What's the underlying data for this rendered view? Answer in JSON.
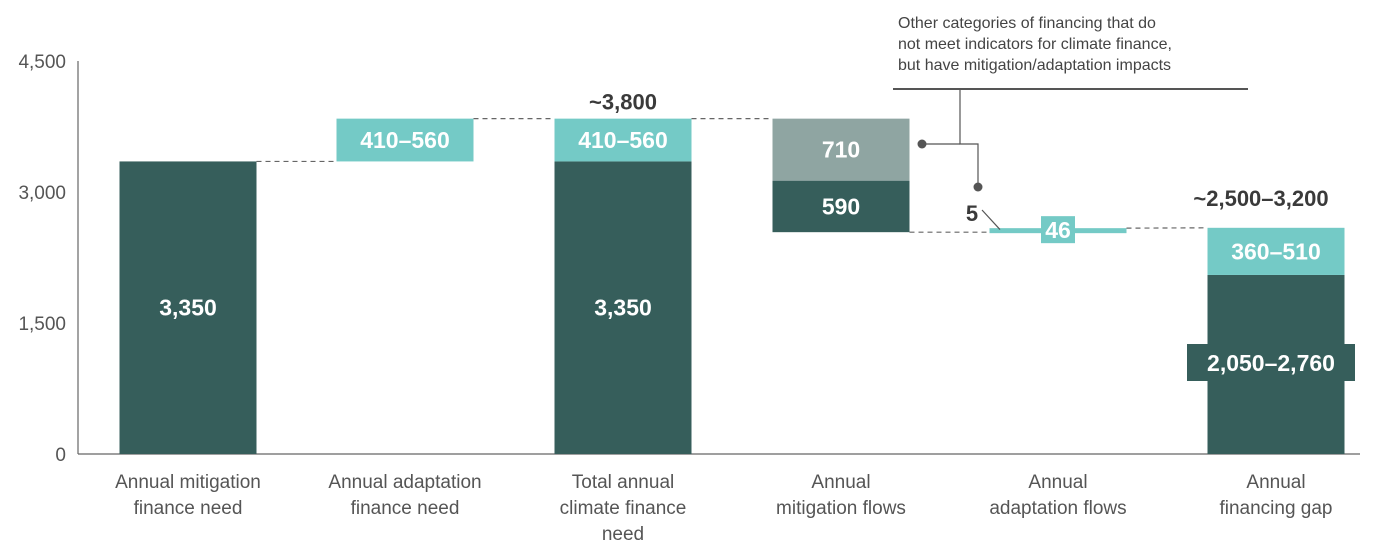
{
  "chart_data": {
    "type": "bar",
    "subtype": "waterfall",
    "ylim": [
      0,
      4500
    ],
    "yticks": [
      {
        "value": 0,
        "label": "0"
      },
      {
        "value": 1500,
        "label": "1,500"
      },
      {
        "value": 3000,
        "label": "3,000"
      },
      {
        "value": 4500,
        "label": "4,500"
      }
    ],
    "categories": [
      [
        "Annual mitigation",
        "finance need"
      ],
      [
        "Annual adaptation",
        "finance need"
      ],
      [
        "Total annual",
        "climate finance",
        "need"
      ],
      [
        "Annual",
        "mitigation flows"
      ],
      [
        "Annual",
        "adaptation flows"
      ],
      [
        "Annual",
        "financing gap"
      ]
    ],
    "segments": [
      {
        "category": 0,
        "start": 0,
        "end": 3350,
        "label": "3,350",
        "color": "dark"
      },
      {
        "category": 1,
        "start": 3350,
        "end": 3840,
        "label": "410–560",
        "color": "teal"
      },
      {
        "category": 2,
        "start": 0,
        "end": 3350,
        "label": "3,350",
        "color": "dark"
      },
      {
        "category": 2,
        "start": 3350,
        "end": 3840,
        "label": "410–560",
        "color": "teal"
      },
      {
        "category": 3,
        "start": 2540,
        "end": 3130,
        "label": "590",
        "color": "dark"
      },
      {
        "category": 3,
        "start": 3130,
        "end": 3840,
        "label": "710",
        "color": "gray"
      },
      {
        "category": 4,
        "start": 2540,
        "end": 2586,
        "label": "46",
        "color": "teal"
      },
      {
        "category": 5,
        "start": 0,
        "end": 2050,
        "label": "2,050–2,760",
        "color": "dark"
      },
      {
        "category": 5,
        "start": 2050,
        "end": 2590,
        "label": "360–510",
        "color": "teal"
      }
    ],
    "totals": [
      {
        "category": 2,
        "label": "~3,800"
      },
      {
        "category": 5,
        "label": "~2,500–3,200"
      }
    ],
    "small_label": {
      "category": 4,
      "label": "5"
    },
    "annotation": [
      "Other categories of financing that do",
      "not meet indicators for climate finance,",
      "but have mitigation/adaptation impacts"
    ]
  },
  "colors": {
    "dark": "#365e5b",
    "teal": "#74cac6",
    "gray": "#8fa5a2",
    "axis": "#666666",
    "connector": "#666666"
  }
}
